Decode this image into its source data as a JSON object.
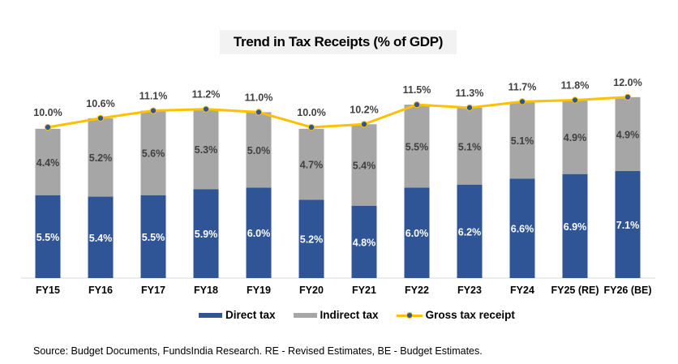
{
  "chart_data": {
    "type": "bar",
    "subtype": "stacked-bar-with-line",
    "title": "Trend in Tax Receipts (% of GDP)",
    "xlabel": "",
    "ylabel": "",
    "ylim": [
      0,
      12.5
    ],
    "grid": false,
    "legend_position": "bottom",
    "categories": [
      "FY15",
      "FY16",
      "FY17",
      "FY18",
      "FY19",
      "FY20",
      "FY21",
      "FY22",
      "FY23",
      "FY24",
      "FY25 (RE)",
      "FY26 (BE)"
    ],
    "series": [
      {
        "name": "Direct tax",
        "type": "bar",
        "color": "#2f5597",
        "values": [
          5.5,
          5.4,
          5.5,
          5.9,
          6.0,
          5.2,
          4.8,
          6.0,
          6.2,
          6.6,
          6.9,
          7.1
        ],
        "labels": [
          "5.5%",
          "5.4%",
          "5.5%",
          "5.9%",
          "6.0%",
          "5.2%",
          "4.8%",
          "6.0%",
          "6.2%",
          "6.6%",
          "6.9%",
          "7.1%"
        ]
      },
      {
        "name": "Indirect tax",
        "type": "bar",
        "color": "#a6a6a6",
        "values": [
          4.4,
          5.2,
          5.6,
          5.3,
          5.0,
          4.7,
          5.4,
          5.5,
          5.1,
          5.1,
          4.9,
          4.9
        ],
        "labels": [
          "4.4%",
          "5.2%",
          "5.6%",
          "5.3%",
          "5.0%",
          "4.7%",
          "5.4%",
          "5.5%",
          "5.1%",
          "5.1%",
          "4.9%",
          "4.9%"
        ]
      },
      {
        "name": "Gross tax receipt",
        "type": "line",
        "color": "#ffc000",
        "marker_color": "#2f5597",
        "values": [
          10.0,
          10.6,
          11.1,
          11.2,
          11.0,
          10.0,
          10.2,
          11.5,
          11.3,
          11.7,
          11.8,
          12.0
        ],
        "labels": [
          "10.0%",
          "10.6%",
          "11.1%",
          "11.2%",
          "11.0%",
          "10.0%",
          "10.2%",
          "11.5%",
          "11.3%",
          "11.7%",
          "11.8%",
          "12.0%"
        ]
      }
    ]
  },
  "legend": {
    "direct": "Direct tax",
    "indirect": "Indirect tax",
    "gross": "Gross tax receipt"
  },
  "source": "Source: Budget Documents, FundsIndia Research. RE - Revised Estimates, BE - Budget Estimates."
}
